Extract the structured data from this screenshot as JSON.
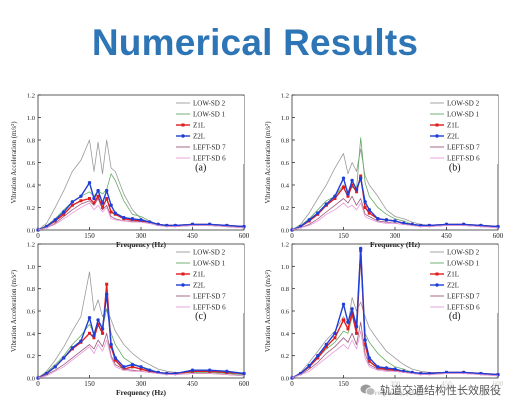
{
  "page": {
    "title": "Numerical Results"
  },
  "watermark": {
    "text": "轨道交通结构性长效服役"
  },
  "colors": {
    "LOW-SD 2": "#9a9a9a",
    "LOW-SD 1": "#66aa66",
    "Z1L": "#e11c1c",
    "Z2L": "#1f3fd8",
    "LEFT-SD 7": "#9e5a7e",
    "LEFT-SD 6": "#e79ad9"
  },
  "chart_data": [
    {
      "id": "a",
      "panel_label": "(a)",
      "type": "line",
      "xlabel": "Frequency (Hz)",
      "ylabel": "Vibration Acceleration (m/s²)",
      "xlim": [
        0,
        600
      ],
      "ylim": [
        0,
        1.2
      ],
      "xticks": [
        "0",
        "150",
        "300",
        "450",
        "600"
      ],
      "yticks": [
        "0.0",
        "0.2",
        "0.4",
        "0.6",
        "0.8",
        "1.0",
        "1.2"
      ],
      "legend": "top-right",
      "grid": false,
      "x": [
        0,
        25,
        50,
        75,
        100,
        125,
        150,
        163,
        175,
        188,
        200,
        213,
        225,
        250,
        275,
        300,
        325,
        350,
        375,
        400,
        450,
        500,
        550,
        600
      ],
      "series": [
        {
          "name": "LOW-SD 2",
          "values": [
            0,
            0.06,
            0.2,
            0.35,
            0.52,
            0.62,
            0.8,
            0.52,
            0.78,
            0.5,
            0.8,
            0.55,
            0.52,
            0.32,
            0.18,
            0.1,
            0.07,
            0.05,
            0.04,
            0.04,
            0.05,
            0.04,
            0.03,
            0.02
          ]
        },
        {
          "name": "LOW-SD 1",
          "values": [
            0,
            0.04,
            0.1,
            0.18,
            0.25,
            0.3,
            0.34,
            0.3,
            0.35,
            0.32,
            0.36,
            0.5,
            0.44,
            0.26,
            0.14,
            0.12,
            0.08,
            0.05,
            0.04,
            0.03,
            0.04,
            0.04,
            0.03,
            0.02
          ]
        },
        {
          "name": "Z1L",
          "values": [
            0,
            0.03,
            0.08,
            0.14,
            0.22,
            0.26,
            0.28,
            0.24,
            0.3,
            0.2,
            0.28,
            0.16,
            0.14,
            0.1,
            0.09,
            0.08,
            0.07,
            0.05,
            0.04,
            0.04,
            0.05,
            0.05,
            0.04,
            0.03
          ]
        },
        {
          "name": "Z2L",
          "values": [
            0,
            0.03,
            0.09,
            0.16,
            0.25,
            0.3,
            0.42,
            0.28,
            0.35,
            0.24,
            0.35,
            0.22,
            0.15,
            0.11,
            0.1,
            0.09,
            0.07,
            0.05,
            0.04,
            0.04,
            0.05,
            0.05,
            0.04,
            0.03
          ]
        },
        {
          "name": "LEFT-SD 7",
          "values": [
            0,
            0.02,
            0.06,
            0.12,
            0.18,
            0.23,
            0.26,
            0.22,
            0.28,
            0.18,
            0.22,
            0.12,
            0.1,
            0.08,
            0.08,
            0.07,
            0.06,
            0.04,
            0.03,
            0.03,
            0.04,
            0.04,
            0.03,
            0.02
          ]
        },
        {
          "name": "LEFT-SD 6",
          "values": [
            0,
            0.02,
            0.05,
            0.1,
            0.15,
            0.2,
            0.24,
            0.18,
            0.22,
            0.16,
            0.2,
            0.1,
            0.09,
            0.08,
            0.07,
            0.07,
            0.06,
            0.04,
            0.03,
            0.03,
            0.04,
            0.04,
            0.03,
            0.02
          ]
        }
      ]
    },
    {
      "id": "b",
      "panel_label": "(b)",
      "type": "line",
      "xlabel": "Frequency (Hz)",
      "ylabel": "Vibration Acceleration (m/s²)",
      "xlim": [
        0,
        600
      ],
      "ylim": [
        0,
        1.2
      ],
      "xticks": [
        "0",
        "150",
        "300",
        "450",
        "600"
      ],
      "yticks": [
        "0.0",
        "0.2",
        "0.4",
        "0.6",
        "0.8",
        "1.0",
        "1.2"
      ],
      "legend": "top-right",
      "grid": false,
      "x": [
        0,
        25,
        50,
        75,
        100,
        125,
        150,
        163,
        175,
        188,
        200,
        213,
        225,
        250,
        275,
        300,
        325,
        350,
        375,
        400,
        450,
        500,
        550,
        600
      ],
      "series": [
        {
          "name": "LOW-SD 2",
          "values": [
            0,
            0.05,
            0.15,
            0.28,
            0.4,
            0.55,
            0.68,
            0.5,
            0.6,
            0.52,
            0.72,
            0.48,
            0.4,
            0.3,
            0.18,
            0.12,
            0.1,
            0.07,
            0.05,
            0.04,
            0.05,
            0.05,
            0.04,
            0.03
          ]
        },
        {
          "name": "LOW-SD 1",
          "values": [
            0,
            0.04,
            0.1,
            0.18,
            0.26,
            0.3,
            0.4,
            0.34,
            0.38,
            0.36,
            0.82,
            0.42,
            0.3,
            0.2,
            0.14,
            0.1,
            0.08,
            0.05,
            0.04,
            0.04,
            0.05,
            0.05,
            0.04,
            0.03
          ]
        },
        {
          "name": "Z1L",
          "values": [
            0,
            0.03,
            0.08,
            0.14,
            0.22,
            0.28,
            0.38,
            0.3,
            0.4,
            0.34,
            0.48,
            0.2,
            0.15,
            0.1,
            0.09,
            0.08,
            0.06,
            0.05,
            0.04,
            0.04,
            0.05,
            0.05,
            0.04,
            0.03
          ]
        },
        {
          "name": "Z2L",
          "values": [
            0,
            0.03,
            0.09,
            0.15,
            0.23,
            0.3,
            0.46,
            0.32,
            0.44,
            0.36,
            0.46,
            0.25,
            0.18,
            0.1,
            0.09,
            0.08,
            0.06,
            0.05,
            0.04,
            0.04,
            0.05,
            0.05,
            0.04,
            0.03
          ]
        },
        {
          "name": "LEFT-SD 7",
          "values": [
            0,
            0.02,
            0.05,
            0.1,
            0.16,
            0.22,
            0.28,
            0.24,
            0.3,
            0.22,
            0.28,
            0.14,
            0.12,
            0.08,
            0.07,
            0.06,
            0.05,
            0.04,
            0.03,
            0.03,
            0.04,
            0.04,
            0.03,
            0.02
          ]
        },
        {
          "name": "LEFT-SD 6",
          "values": [
            0,
            0.02,
            0.04,
            0.08,
            0.14,
            0.18,
            0.24,
            0.2,
            0.22,
            0.18,
            0.24,
            0.12,
            0.1,
            0.07,
            0.06,
            0.06,
            0.05,
            0.04,
            0.03,
            0.03,
            0.04,
            0.04,
            0.03,
            0.02
          ]
        }
      ]
    },
    {
      "id": "c",
      "panel_label": "(c)",
      "type": "line",
      "xlabel": "Frequency (Hz)",
      "ylabel": "Vibration Acceleration (m/s²)",
      "xlim": [
        0,
        600
      ],
      "ylim": [
        0,
        1.2
      ],
      "xticks": [
        "0",
        "150",
        "300",
        "450",
        "600"
      ],
      "yticks": [
        "0.0",
        "0.2",
        "0.4",
        "0.6",
        "0.8",
        "1.0",
        "1.2"
      ],
      "legend": "top-right",
      "grid": false,
      "x": [
        0,
        25,
        50,
        75,
        100,
        125,
        150,
        163,
        175,
        188,
        200,
        213,
        225,
        250,
        275,
        300,
        325,
        350,
        375,
        400,
        450,
        500,
        550,
        600
      ],
      "series": [
        {
          "name": "LOW-SD 2",
          "values": [
            0,
            0.06,
            0.16,
            0.28,
            0.42,
            0.55,
            0.95,
            0.6,
            0.7,
            0.55,
            0.62,
            0.52,
            0.42,
            0.3,
            0.22,
            0.16,
            0.12,
            0.08,
            0.06,
            0.05,
            0.05,
            0.05,
            0.04,
            0.03
          ]
        },
        {
          "name": "LOW-SD 1",
          "values": [
            0,
            0.05,
            0.12,
            0.2,
            0.3,
            0.38,
            0.48,
            0.4,
            0.52,
            0.45,
            0.62,
            0.4,
            0.3,
            0.18,
            0.13,
            0.1,
            0.08,
            0.05,
            0.04,
            0.04,
            0.05,
            0.05,
            0.04,
            0.03
          ]
        },
        {
          "name": "Z1L",
          "values": [
            0,
            0.04,
            0.1,
            0.18,
            0.26,
            0.32,
            0.4,
            0.36,
            0.48,
            0.4,
            0.84,
            0.28,
            0.16,
            0.08,
            0.1,
            0.08,
            0.06,
            0.05,
            0.04,
            0.04,
            0.06,
            0.06,
            0.05,
            0.04
          ]
        },
        {
          "name": "Z2L",
          "values": [
            0,
            0.04,
            0.1,
            0.18,
            0.27,
            0.33,
            0.54,
            0.38,
            0.52,
            0.44,
            0.75,
            0.3,
            0.18,
            0.1,
            0.12,
            0.1,
            0.07,
            0.05,
            0.04,
            0.04,
            0.07,
            0.07,
            0.06,
            0.04
          ]
        },
        {
          "name": "LEFT-SD 7",
          "values": [
            0,
            0.03,
            0.07,
            0.12,
            0.18,
            0.24,
            0.3,
            0.26,
            0.34,
            0.28,
            0.4,
            0.2,
            0.12,
            0.08,
            0.07,
            0.06,
            0.05,
            0.04,
            0.03,
            0.03,
            0.04,
            0.04,
            0.03,
            0.02
          ]
        },
        {
          "name": "LEFT-SD 6",
          "values": [
            0,
            0.02,
            0.06,
            0.1,
            0.16,
            0.22,
            0.28,
            0.22,
            0.3,
            0.24,
            0.34,
            0.18,
            0.1,
            0.07,
            0.06,
            0.06,
            0.05,
            0.04,
            0.03,
            0.03,
            0.04,
            0.04,
            0.03,
            0.02
          ]
        }
      ]
    },
    {
      "id": "d",
      "panel_label": "(d)",
      "type": "line",
      "xlabel": "Frequency (Hz)",
      "ylabel": "Vibration Acceleration (m/s²)",
      "xlim": [
        0,
        600
      ],
      "ylim": [
        0,
        1.2
      ],
      "xticks": [
        "0",
        "150",
        "300",
        "450",
        "600"
      ],
      "yticks": [
        "0.0",
        "0.2",
        "0.4",
        "0.6",
        "0.8",
        "1.0",
        "1.2"
      ],
      "legend": "top-right",
      "grid": false,
      "x": [
        0,
        25,
        50,
        75,
        100,
        125,
        150,
        163,
        175,
        188,
        200,
        213,
        225,
        250,
        275,
        300,
        325,
        350,
        375,
        400,
        450,
        500,
        550,
        600
      ],
      "series": [
        {
          "name": "LOW-SD 2",
          "values": [
            0,
            0.05,
            0.14,
            0.24,
            0.34,
            0.42,
            0.55,
            0.48,
            0.72,
            0.6,
            0.68,
            0.55,
            0.45,
            0.34,
            0.24,
            0.18,
            0.12,
            0.08,
            0.06,
            0.05,
            0.05,
            0.05,
            0.04,
            0.03
          ]
        },
        {
          "name": "LOW-SD 1",
          "values": [
            0,
            0.04,
            0.1,
            0.18,
            0.26,
            0.32,
            0.42,
            0.4,
            0.55,
            0.5,
            1.05,
            0.4,
            0.32,
            0.22,
            0.15,
            0.1,
            0.08,
            0.05,
            0.04,
            0.04,
            0.05,
            0.05,
            0.04,
            0.03
          ]
        },
        {
          "name": "Z1L",
          "values": [
            0,
            0.04,
            0.1,
            0.18,
            0.28,
            0.36,
            0.52,
            0.44,
            0.58,
            0.4,
            1.14,
            0.3,
            0.15,
            0.09,
            0.08,
            0.07,
            0.06,
            0.05,
            0.04,
            0.04,
            0.05,
            0.05,
            0.04,
            0.03
          ]
        },
        {
          "name": "Z2L",
          "values": [
            0,
            0.04,
            0.11,
            0.2,
            0.3,
            0.4,
            0.66,
            0.5,
            0.62,
            0.46,
            1.16,
            0.34,
            0.18,
            0.1,
            0.09,
            0.08,
            0.06,
            0.05,
            0.04,
            0.04,
            0.05,
            0.05,
            0.04,
            0.03
          ]
        },
        {
          "name": "LEFT-SD 7",
          "values": [
            0,
            0.03,
            0.08,
            0.14,
            0.22,
            0.28,
            0.36,
            0.32,
            0.4,
            0.3,
            0.5,
            0.22,
            0.12,
            0.08,
            0.07,
            0.06,
            0.05,
            0.04,
            0.03,
            0.03,
            0.04,
            0.04,
            0.03,
            0.02
          ]
        },
        {
          "name": "LEFT-SD 6",
          "values": [
            0,
            0.03,
            0.06,
            0.12,
            0.18,
            0.24,
            0.3,
            0.26,
            0.34,
            0.26,
            0.42,
            0.18,
            0.1,
            0.07,
            0.06,
            0.06,
            0.05,
            0.04,
            0.03,
            0.03,
            0.04,
            0.04,
            0.03,
            0.02
          ]
        }
      ]
    }
  ]
}
